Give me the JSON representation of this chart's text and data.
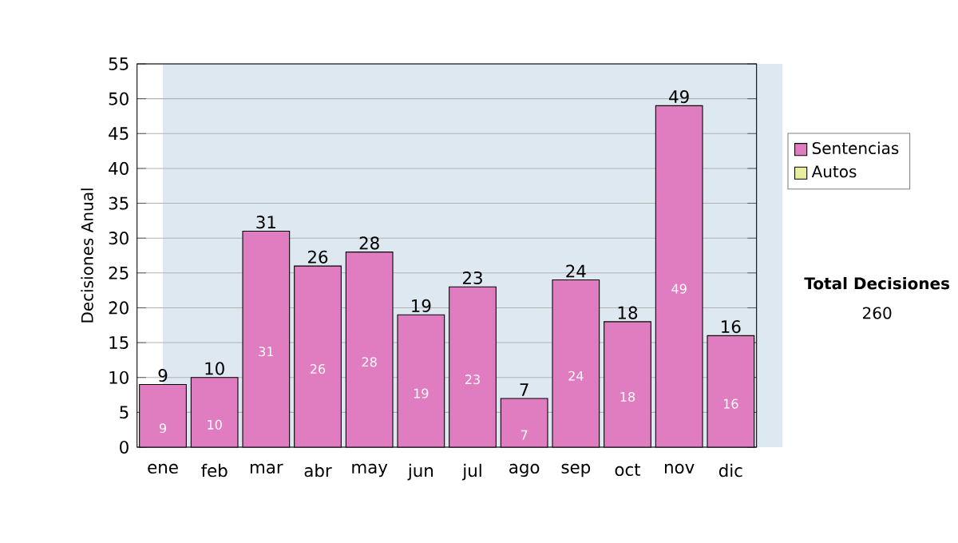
{
  "chart_data": {
    "type": "bar",
    "ylabel": "Decisiones Anual",
    "categories": [
      "ene",
      "feb",
      "mar",
      "abr",
      "may",
      "jun",
      "jul",
      "ago",
      "sep",
      "oct",
      "nov",
      "dic"
    ],
    "series": [
      {
        "name": "Sentencias",
        "color": "#e07cc0",
        "values": [
          9,
          10,
          31,
          26,
          28,
          19,
          23,
          7,
          24,
          18,
          49,
          16
        ]
      },
      {
        "name": "Autos",
        "color": "#e8f0a0",
        "values": [
          null,
          null,
          null,
          null,
          null,
          null,
          null,
          null,
          null,
          null,
          null,
          null
        ]
      }
    ],
    "stacked": true,
    "data_labels": true,
    "totals": [
      "9",
      "10",
      "31",
      "26",
      "28",
      "19",
      "23",
      "7",
      "24",
      "18",
      "49",
      "16"
    ],
    "ylim": [
      0,
      55
    ],
    "yticks": [
      0,
      5,
      10,
      15,
      20,
      25,
      30,
      35,
      40,
      45,
      50,
      55
    ],
    "grid": "y",
    "legend": "right",
    "annotations": [
      "Total Decisiones",
      "260"
    ]
  }
}
